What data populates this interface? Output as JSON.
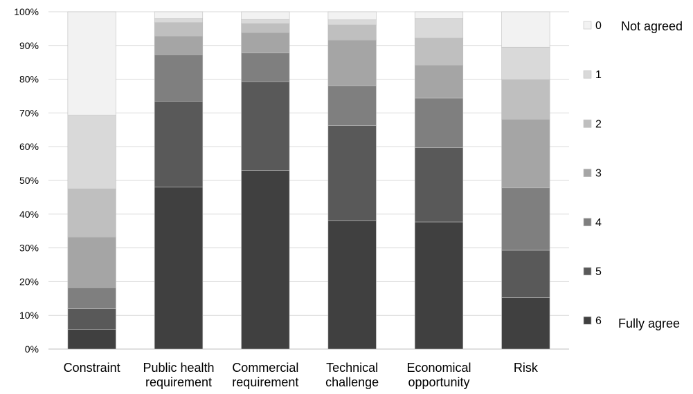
{
  "chart_data": {
    "type": "bar",
    "stacked": true,
    "percent": true,
    "categories": [
      [
        "Constraint"
      ],
      [
        "Public health",
        "requirement"
      ],
      [
        "Commercial",
        "requirement"
      ],
      [
        "Technical",
        "challenge"
      ],
      [
        "Economical",
        "opportunity"
      ],
      [
        "Risk"
      ]
    ],
    "series": [
      {
        "name": "6",
        "color": "#404040",
        "values": [
          5.8,
          48.0,
          53.0,
          38.0,
          37.7,
          15.3
        ]
      },
      {
        "name": "5",
        "color": "#595959",
        "values": [
          6.2,
          25.5,
          26.3,
          28.3,
          22.0,
          14.0
        ]
      },
      {
        "name": "4",
        "color": "#7f7f7f",
        "values": [
          6.2,
          13.8,
          8.5,
          11.8,
          14.7,
          18.5
        ]
      },
      {
        "name": "3",
        "color": "#a5a5a5",
        "values": [
          15.0,
          5.5,
          6.0,
          13.5,
          9.8,
          20.3
        ]
      },
      {
        "name": "2",
        "color": "#bfbfbf",
        "values": [
          14.3,
          4.0,
          2.7,
          4.5,
          8.0,
          11.8
        ]
      },
      {
        "name": "1",
        "color": "#d9d9d9",
        "values": [
          21.8,
          1.2,
          1.2,
          1.5,
          5.8,
          9.6
        ]
      },
      {
        "name": "0",
        "color": "#f2f2f2",
        "values": [
          30.7,
          2.0,
          2.3,
          2.4,
          2.0,
          10.5
        ]
      }
    ],
    "ylim": [
      0,
      100
    ],
    "yticks": [
      "0%",
      "10%",
      "20%",
      "30%",
      "40%",
      "50%",
      "60%",
      "70%",
      "80%",
      "90%",
      "100%"
    ],
    "gridlines": true,
    "legend": {
      "position": "right",
      "order": [
        "0",
        "1",
        "2",
        "3",
        "4",
        "5",
        "6"
      ],
      "top_note": "Not agreed",
      "bottom_note": "Fully agree"
    }
  }
}
